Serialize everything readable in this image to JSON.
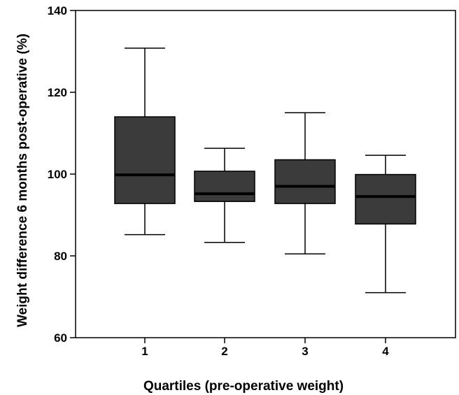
{
  "chart_data": {
    "type": "box",
    "xlabel": "Quartiles (pre-operative weight)",
    "ylabel": "Weight difference 6 months post-operative (%)",
    "ylim": [
      60,
      140
    ],
    "yticks": [
      60,
      80,
      100,
      120,
      140
    ],
    "categories": [
      "1",
      "2",
      "3",
      "4"
    ],
    "boxes": [
      {
        "category": "1",
        "whisker_low": 85.2,
        "q1": 92.8,
        "median": 99.8,
        "q3": 114.0,
        "whisker_high": 130.8
      },
      {
        "category": "2",
        "whisker_low": 83.3,
        "q1": 93.3,
        "median": 95.2,
        "q3": 100.7,
        "whisker_high": 106.3
      },
      {
        "category": "3",
        "whisker_low": 80.5,
        "q1": 92.8,
        "median": 97.0,
        "q3": 103.5,
        "whisker_high": 115.0
      },
      {
        "category": "4",
        "whisker_low": 71.0,
        "q1": 87.8,
        "median": 94.5,
        "q3": 99.9,
        "whisker_high": 104.6
      }
    ],
    "colors": {
      "box_fill": "#3b3b3b",
      "median": "#000000",
      "line": "#000000"
    },
    "grid": false,
    "legend": "none"
  }
}
